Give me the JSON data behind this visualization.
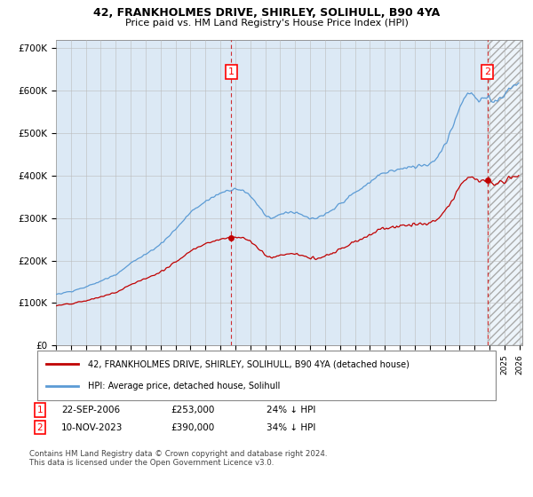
{
  "title_line1": "42, FRANKHOLMES DRIVE, SHIRLEY, SOLIHULL, B90 4YA",
  "title_line2": "Price paid vs. HM Land Registry's House Price Index (HPI)",
  "ylim": [
    0,
    720000
  ],
  "yticks": [
    0,
    100000,
    200000,
    300000,
    400000,
    500000,
    600000,
    700000
  ],
  "ytick_labels": [
    "£0",
    "£100K",
    "£200K",
    "£300K",
    "£400K",
    "£500K",
    "£600K",
    "£700K"
  ],
  "hpi_color": "#5b9bd5",
  "price_color": "#c00000",
  "dashed_color": "#cc0000",
  "background_color": "#ffffff",
  "chart_bg_color": "#dce9f5",
  "grid_color": "#bbbbbb",
  "point1_x": 2006.73,
  "point1_price": 253000,
  "point2_x": 2023.86,
  "point2_price": 390000,
  "legend_line1": "42, FRANKHOLMES DRIVE, SHIRLEY, SOLIHULL, B90 4YA (detached house)",
  "legend_line2": "HPI: Average price, detached house, Solihull",
  "footer": "Contains HM Land Registry data © Crown copyright and database right 2024.\nThis data is licensed under the Open Government Licence v3.0.",
  "xmin": 1995,
  "xmax": 2026.2
}
